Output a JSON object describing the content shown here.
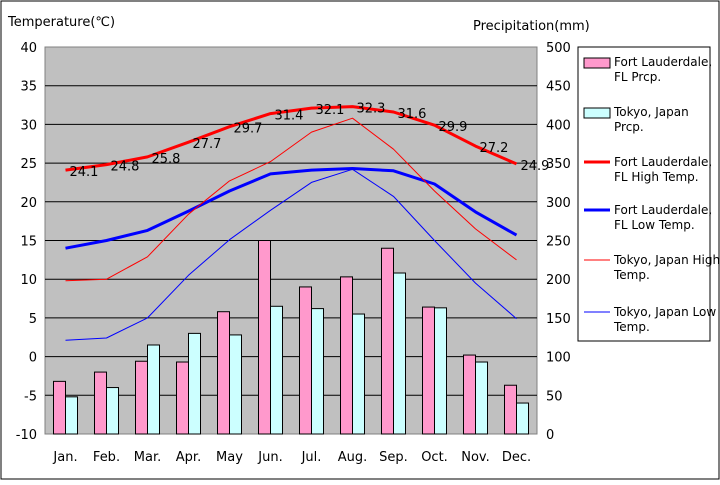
{
  "chart_data": {
    "type": "bar",
    "categories": [
      "Jan.",
      "Feb.",
      "Mar.",
      "Apr.",
      "May",
      "Jun.",
      "Jul.",
      "Aug.",
      "Sep.",
      "Oct.",
      "Nov.",
      "Dec."
    ],
    "left_axis": {
      "title": "Temperature(℃)",
      "min": -10,
      "max": 40,
      "step": 5
    },
    "right_axis": {
      "title": "Precipitation(mm)",
      "min": 0,
      "max": 500,
      "step": 50
    },
    "series": [
      {
        "name": "Fort Lauderdale, FL Prcp.",
        "kind": "bar",
        "axis": "right",
        "color": "#ff99cc",
        "values": [
          68,
          80,
          94,
          93,
          158,
          250,
          190,
          203,
          240,
          164,
          102,
          63
        ]
      },
      {
        "name": "Tokyo, Japan Prcp.",
        "kind": "bar",
        "axis": "right",
        "color": "#ccffff",
        "values": [
          48,
          60,
          115,
          130,
          128,
          165,
          162,
          155,
          208,
          163,
          93,
          40
        ]
      },
      {
        "name": "Fort Lauderdale, FL High Temp.",
        "kind": "line",
        "axis": "left",
        "color": "#ff0000",
        "width": "thick",
        "values": [
          24.1,
          24.8,
          25.8,
          27.7,
          29.7,
          31.4,
          32.1,
          32.3,
          31.6,
          29.9,
          27.2,
          24.9
        ]
      },
      {
        "name": "Fort Lauderdale, FL Low Temp.",
        "kind": "line",
        "axis": "left",
        "color": "#0000ff",
        "width": "thick",
        "values": [
          14.0,
          15.0,
          16.3,
          18.8,
          21.4,
          23.6,
          24.1,
          24.3,
          24.0,
          22.3,
          18.7,
          15.7
        ]
      },
      {
        "name": "Tokyo, Japan High Temp.",
        "kind": "line",
        "axis": "left",
        "color": "#ff0000",
        "width": "thin",
        "values": [
          9.8,
          10.0,
          12.9,
          18.4,
          22.7,
          25.2,
          29.0,
          30.8,
          26.8,
          21.4,
          16.5,
          12.5
        ]
      },
      {
        "name": "Tokyo, Japan Low Temp.",
        "kind": "line",
        "axis": "left",
        "color": "#0000ff",
        "width": "thin",
        "values": [
          2.1,
          2.4,
          5.0,
          10.5,
          15.1,
          18.9,
          22.5,
          24.2,
          20.7,
          15.0,
          9.5,
          4.9
        ]
      }
    ],
    "data_labels": [
      "24.1",
      "24.8",
      "25.8",
      "27.7",
      "29.7",
      "31.4",
      "32.1",
      "32.3",
      "31.6",
      "29.9",
      "27.2",
      "24.9"
    ],
    "grid": true,
    "plot_background": "#c0c0c0",
    "legend_position": "right"
  }
}
